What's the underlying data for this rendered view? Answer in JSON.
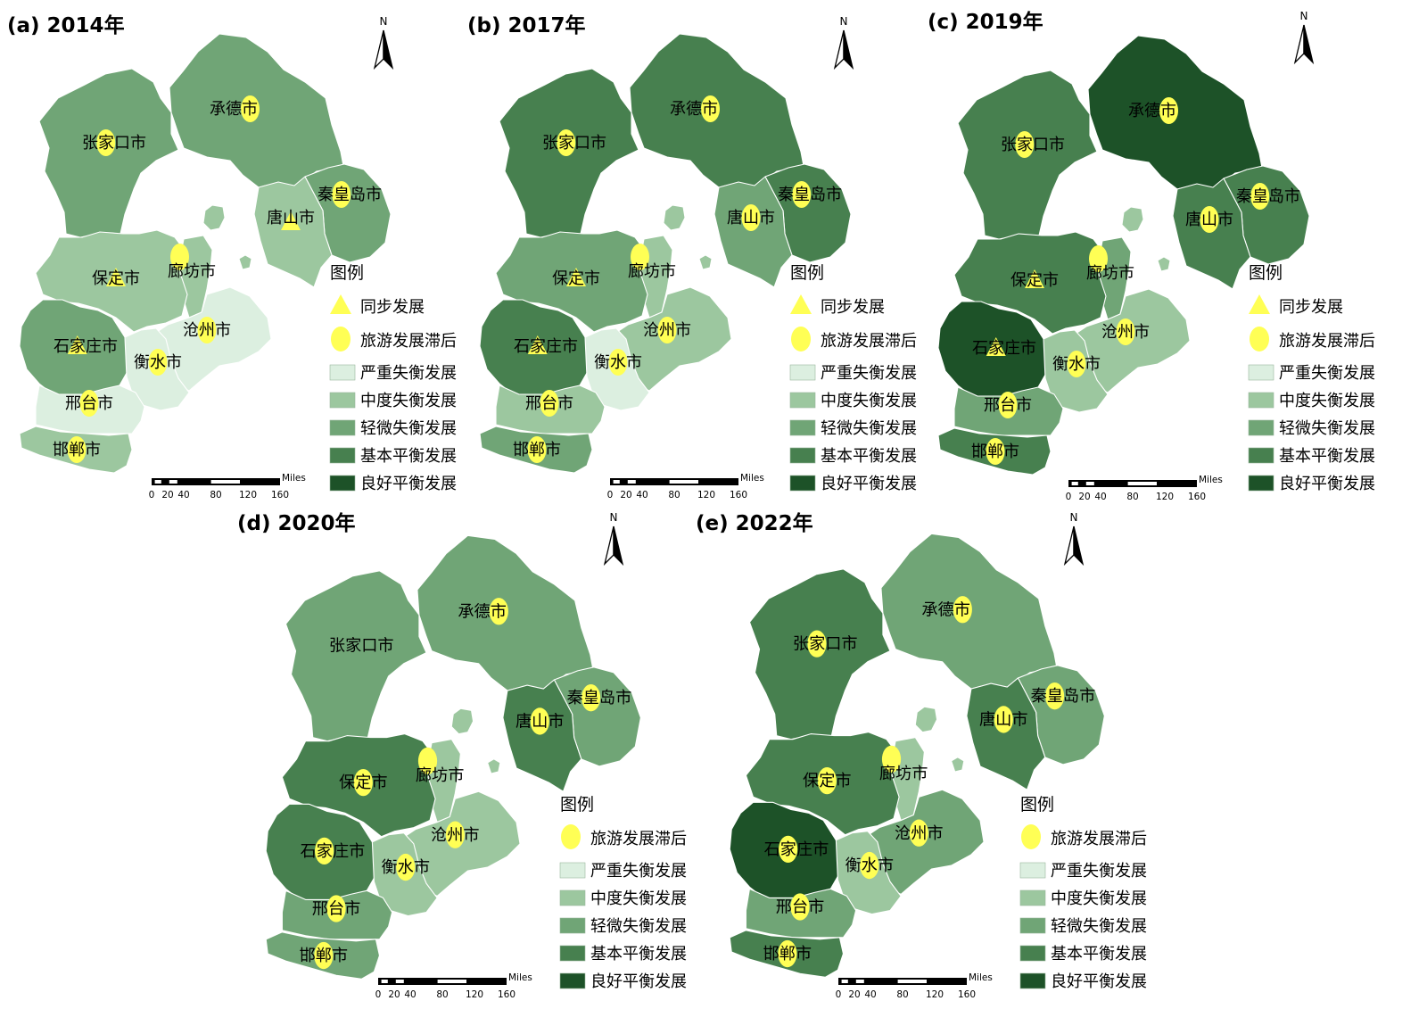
{
  "map": {
    "legend_title": "图例",
    "symbols": {
      "sync": "同步发展",
      "lag": "旅游发展滞后"
    },
    "classes": [
      {
        "label": "严重失衡发展",
        "color": "#dcefe0"
      },
      {
        "label": "中度失衡发展",
        "color": "#9cc79f"
      },
      {
        "label": "轻微失衡发展",
        "color": "#70a576"
      },
      {
        "label": "基本平衡发展",
        "color": "#47804f"
      },
      {
        "label": "良好平衡发展",
        "color": "#1d5228"
      }
    ],
    "scale": {
      "unit": "Miles",
      "ticks": [
        "0",
        "20",
        "40",
        "80",
        "120",
        "160"
      ]
    },
    "north_label": "N",
    "panels": [
      {
        "title": "(a) 2014年",
        "show_sync": true,
        "cities": {
          "zhangjiakou": {
            "name": "张家口市",
            "class": 2,
            "symbol": "lag"
          },
          "chengde": {
            "name": "承德市",
            "class": 2,
            "symbol": "lag"
          },
          "qinhuangdao": {
            "name": "秦皇岛市",
            "class": 2,
            "symbol": "lag"
          },
          "tangshan": {
            "name": "唐山市",
            "class": 1,
            "symbol": "sync"
          },
          "langfang": {
            "name": "廊坊市",
            "class": 1,
            "symbol": "lag"
          },
          "baoding": {
            "name": "保定市",
            "class": 1,
            "symbol": "sync"
          },
          "cangzhou": {
            "name": "沧州市",
            "class": 0,
            "symbol": "lag"
          },
          "shijiazhuang": {
            "name": "石家庄市",
            "class": 2,
            "symbol": "sync"
          },
          "hengshui": {
            "name": "衡水市",
            "class": 0,
            "symbol": "lag"
          },
          "xingtai": {
            "name": "邢台市",
            "class": 0,
            "symbol": "lag"
          },
          "handan": {
            "name": "邯郸市",
            "class": 1,
            "symbol": "lag"
          }
        }
      },
      {
        "title": "(b) 2017年",
        "show_sync": true,
        "cities": {
          "zhangjiakou": {
            "name": "张家口市",
            "class": 3,
            "symbol": "lag"
          },
          "chengde": {
            "name": "承德市",
            "class": 3,
            "symbol": "lag"
          },
          "qinhuangdao": {
            "name": "秦皇岛市",
            "class": 3,
            "symbol": "lag"
          },
          "tangshan": {
            "name": "唐山市",
            "class": 2,
            "symbol": "lag"
          },
          "langfang": {
            "name": "廊坊市",
            "class": 1,
            "symbol": "lag"
          },
          "baoding": {
            "name": "保定市",
            "class": 2,
            "symbol": "sync"
          },
          "cangzhou": {
            "name": "沧州市",
            "class": 1,
            "symbol": "lag"
          },
          "shijiazhuang": {
            "name": "石家庄市",
            "class": 3,
            "symbol": "sync"
          },
          "hengshui": {
            "name": "衡水市",
            "class": 0,
            "symbol": "lag"
          },
          "xingtai": {
            "name": "邢台市",
            "class": 1,
            "symbol": "lag"
          },
          "handan": {
            "name": "邯郸市",
            "class": 2,
            "symbol": "lag"
          }
        }
      },
      {
        "title": "(c) 2019年",
        "show_sync": true,
        "cities": {
          "zhangjiakou": {
            "name": "张家口市",
            "class": 3,
            "symbol": "lag"
          },
          "chengde": {
            "name": "承德市",
            "class": 4,
            "symbol": "lag"
          },
          "qinhuangdao": {
            "name": "秦皇岛市",
            "class": 3,
            "symbol": "lag"
          },
          "tangshan": {
            "name": "唐山市",
            "class": 3,
            "symbol": "lag"
          },
          "langfang": {
            "name": "廊坊市",
            "class": 2,
            "symbol": "lag"
          },
          "baoding": {
            "name": "保定市",
            "class": 3,
            "symbol": "sync"
          },
          "cangzhou": {
            "name": "沧州市",
            "class": 1,
            "symbol": "lag"
          },
          "shijiazhuang": {
            "name": "石家庄市",
            "class": 4,
            "symbol": "sync"
          },
          "hengshui": {
            "name": "衡水市",
            "class": 1,
            "symbol": "lag"
          },
          "xingtai": {
            "name": "邢台市",
            "class": 2,
            "symbol": "lag"
          },
          "handan": {
            "name": "邯郸市",
            "class": 3,
            "symbol": "lag"
          }
        }
      },
      {
        "title": "(d) 2020年",
        "show_sync": false,
        "cities": {
          "zhangjiakou": {
            "name": "张家口市",
            "class": 2,
            "symbol": "none"
          },
          "chengde": {
            "name": "承德市",
            "class": 2,
            "symbol": "lag"
          },
          "qinhuangdao": {
            "name": "秦皇岛市",
            "class": 2,
            "symbol": "lag"
          },
          "tangshan": {
            "name": "唐山市",
            "class": 3,
            "symbol": "lag"
          },
          "langfang": {
            "name": "廊坊市",
            "class": 1,
            "symbol": "lag"
          },
          "baoding": {
            "name": "保定市",
            "class": 3,
            "symbol": "lag"
          },
          "cangzhou": {
            "name": "沧州市",
            "class": 1,
            "symbol": "lag"
          },
          "shijiazhuang": {
            "name": "石家庄市",
            "class": 3,
            "symbol": "lag"
          },
          "hengshui": {
            "name": "衡水市",
            "class": 1,
            "symbol": "lag"
          },
          "xingtai": {
            "name": "邢台市",
            "class": 2,
            "symbol": "lag"
          },
          "handan": {
            "name": "邯郸市",
            "class": 2,
            "symbol": "lag"
          }
        }
      },
      {
        "title": "(e) 2022年",
        "show_sync": false,
        "cities": {
          "zhangjiakou": {
            "name": "张家口市",
            "class": 3,
            "symbol": "lag"
          },
          "chengde": {
            "name": "承德市",
            "class": 2,
            "symbol": "lag"
          },
          "qinhuangdao": {
            "name": "秦皇岛市",
            "class": 2,
            "symbol": "lag"
          },
          "tangshan": {
            "name": "唐山市",
            "class": 3,
            "symbol": "lag"
          },
          "langfang": {
            "name": "廊坊市",
            "class": 1,
            "symbol": "lag"
          },
          "baoding": {
            "name": "保定市",
            "class": 3,
            "symbol": "lag"
          },
          "cangzhou": {
            "name": "沧州市",
            "class": 2,
            "symbol": "lag"
          },
          "shijiazhuang": {
            "name": "石家庄市",
            "class": 4,
            "symbol": "lag"
          },
          "hengshui": {
            "name": "衡水市",
            "class": 1,
            "symbol": "lag"
          },
          "xingtai": {
            "name": "邢台市",
            "class": 2,
            "symbol": "lag"
          },
          "handan": {
            "name": "邯郸市",
            "class": 3,
            "symbol": "lag"
          }
        }
      }
    ]
  }
}
